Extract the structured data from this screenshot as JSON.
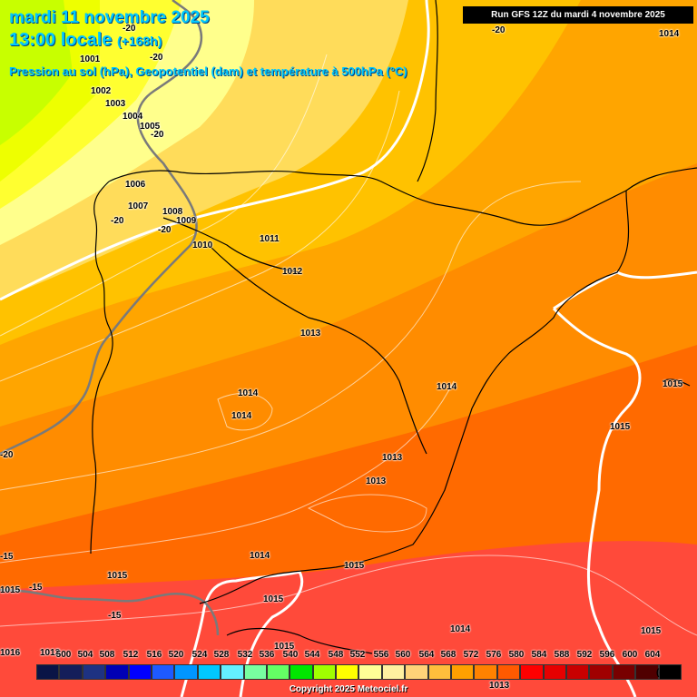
{
  "header": {
    "date": "mardi 11 novembre 2025",
    "time": "13:00 locale",
    "lead": "(+168h)",
    "subtitle": "Pression au sol (hPa), Geopotentiel (dam) et température à 500hPa (°C)",
    "run": "Run GFS 12Z du mardi 4 novembre 2025"
  },
  "pressure_labels": [
    "1001",
    "1002",
    "1003",
    "1004",
    "1005",
    "1006",
    "1007",
    "1008",
    "1009",
    "1010",
    "1011",
    "1012",
    "1013",
    "1013",
    "1013",
    "1013",
    "1014",
    "1014",
    "1014",
    "1014",
    "1014",
    "1015",
    "1015",
    "1015",
    "1015",
    "1015",
    "1015",
    "1015",
    "1015",
    "1014",
    "1013",
    "1016"
  ],
  "temperature_labels": [
    "-20",
    "-20",
    "-20",
    "-20",
    "-20",
    "-20",
    "-15",
    "-15",
    "-20",
    "-15"
  ],
  "scale": {
    "values": [
      "500",
      "504",
      "508",
      "512",
      "516",
      "520",
      "524",
      "528",
      "532",
      "536",
      "540",
      "544",
      "548",
      "552",
      "556",
      "560",
      "564",
      "568",
      "572",
      "576",
      "580",
      "584",
      "588",
      "592",
      "596",
      "600",
      "604"
    ],
    "colors": [
      "#0a1446",
      "#141e5a",
      "#1e3282",
      "#0000b4",
      "#0000ff",
      "#1e5aff",
      "#0096ff",
      "#00c8ff",
      "#64f0ff",
      "#78ffa0",
      "#64ff64",
      "#00e600",
      "#a0ff00",
      "#ffff00",
      "#ffff96",
      "#fff0a0",
      "#ffd278",
      "#ffbe3c",
      "#ffa000",
      "#ff8200",
      "#ff5a00",
      "#ff0000",
      "#e60000",
      "#c80000",
      "#a00000",
      "#780000",
      "#500000",
      "#000000"
    ],
    "unit": "(dam)"
  },
  "footer": {
    "copyright": "Copyright 2025 Meteociel.fr"
  }
}
